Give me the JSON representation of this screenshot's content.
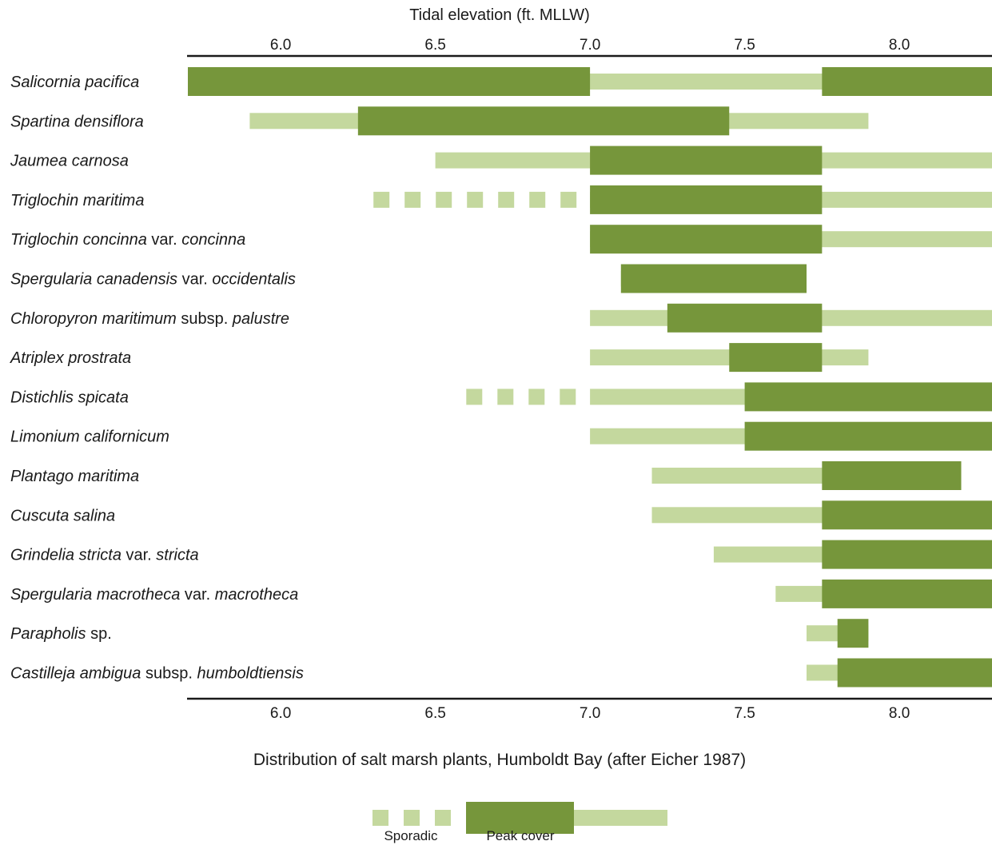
{
  "chart_data": {
    "type": "bar",
    "subtype": "range (floating) bars",
    "title": "Tidal elevation (ft. MLLW)",
    "caption": "Distribution of salt marsh plants, Humboldt Bay (after Eicher 1987)",
    "xlim": [
      5.7,
      8.3
    ],
    "xticks": [
      6.0,
      6.5,
      7.0,
      7.5,
      8.0
    ],
    "tick_labels": [
      "6.0",
      "6.5",
      "7.0",
      "7.5",
      "8.0"
    ],
    "axis_positions": [
      "top",
      "bottom"
    ],
    "colors": {
      "peak": "#76963b",
      "range": "#c4d89e"
    },
    "legend": {
      "placement": "bottom-center",
      "entries": [
        {
          "label": "Sporadic",
          "style": "dashed-light"
        },
        {
          "label": "Peak cover",
          "style": "dark"
        }
      ]
    },
    "species": [
      {
        "label": [
          [
            "Salicornia pacifica",
            true
          ]
        ],
        "range": [
          5.7,
          8.3
        ],
        "peak": [
          [
            5.7,
            7.0
          ],
          [
            7.75,
            8.3
          ]
        ],
        "sporadic": []
      },
      {
        "label": [
          [
            "Spartina densiflora",
            true
          ]
        ],
        "range": [
          5.9,
          7.9
        ],
        "peak": [
          [
            6.25,
            7.45
          ]
        ],
        "sporadic": []
      },
      {
        "label": [
          [
            "Jaumea carnosa",
            true
          ]
        ],
        "range": [
          6.5,
          8.3
        ],
        "peak": [
          [
            7.0,
            7.75
          ]
        ],
        "sporadic": []
      },
      {
        "label": [
          [
            "Triglochin maritima",
            true
          ]
        ],
        "range": [
          7.0,
          8.3
        ],
        "peak": [
          [
            7.0,
            7.75
          ]
        ],
        "sporadic": [
          6.3,
          7.0
        ]
      },
      {
        "label": [
          [
            "Triglochin concinna",
            true
          ],
          [
            " var. ",
            false
          ],
          [
            "concinna",
            true
          ]
        ],
        "range": [
          7.0,
          8.3
        ],
        "peak": [
          [
            7.0,
            7.75
          ]
        ],
        "sporadic": []
      },
      {
        "label": [
          [
            "Spergularia canadensis",
            true
          ],
          [
            " var. ",
            false
          ],
          [
            "occidentalis",
            true
          ]
        ],
        "range": [
          7.1,
          7.7
        ],
        "peak": [
          [
            7.1,
            7.7
          ]
        ],
        "sporadic": []
      },
      {
        "label": [
          [
            "Chloropyron maritimum",
            true
          ],
          [
            " subsp. ",
            false
          ],
          [
            "palustre",
            true
          ]
        ],
        "range": [
          7.0,
          8.3
        ],
        "peak": [
          [
            7.25,
            7.75
          ]
        ],
        "sporadic": []
      },
      {
        "label": [
          [
            "Atriplex prostrata",
            true
          ]
        ],
        "range": [
          7.0,
          7.9
        ],
        "peak": [
          [
            7.45,
            7.75
          ]
        ],
        "sporadic": []
      },
      {
        "label": [
          [
            "Distichlis spicata",
            true
          ]
        ],
        "range": [
          7.0,
          8.3
        ],
        "peak": [
          [
            7.5,
            8.3
          ]
        ],
        "sporadic": [
          6.6,
          7.0
        ]
      },
      {
        "label": [
          [
            "Limonium californicum",
            true
          ]
        ],
        "range": [
          7.0,
          8.3
        ],
        "peak": [
          [
            7.5,
            8.3
          ]
        ],
        "sporadic": []
      },
      {
        "label": [
          [
            "Plantago maritima",
            true
          ]
        ],
        "range": [
          7.2,
          8.2
        ],
        "peak": [
          [
            7.75,
            8.2
          ]
        ],
        "sporadic": []
      },
      {
        "label": [
          [
            "Cuscuta salina",
            true
          ]
        ],
        "range": [
          7.2,
          8.3
        ],
        "peak": [
          [
            7.75,
            8.3
          ]
        ],
        "sporadic": []
      },
      {
        "label": [
          [
            "Grindelia stricta",
            true
          ],
          [
            " var. ",
            false
          ],
          [
            "stricta",
            true
          ]
        ],
        "range": [
          7.4,
          8.3
        ],
        "peak": [
          [
            7.75,
            8.3
          ]
        ],
        "sporadic": []
      },
      {
        "label": [
          [
            "Spergularia macrotheca",
            true
          ],
          [
            " var. ",
            false
          ],
          [
            "macrotheca",
            true
          ]
        ],
        "range": [
          7.6,
          8.3
        ],
        "peak": [
          [
            7.75,
            8.3
          ]
        ],
        "sporadic": []
      },
      {
        "label": [
          [
            "Parapholis",
            true
          ],
          [
            " sp.",
            false
          ]
        ],
        "range": [
          7.7,
          7.9
        ],
        "peak": [
          [
            7.8,
            7.9
          ]
        ],
        "sporadic": []
      },
      {
        "label": [
          [
            "Castilleja ambigua",
            true
          ],
          [
            " subsp. ",
            false
          ],
          [
            "humboldtiensis",
            true
          ]
        ],
        "range": [
          7.7,
          8.3
        ],
        "peak": [
          [
            7.8,
            8.3
          ]
        ],
        "sporadic": []
      }
    ]
  }
}
